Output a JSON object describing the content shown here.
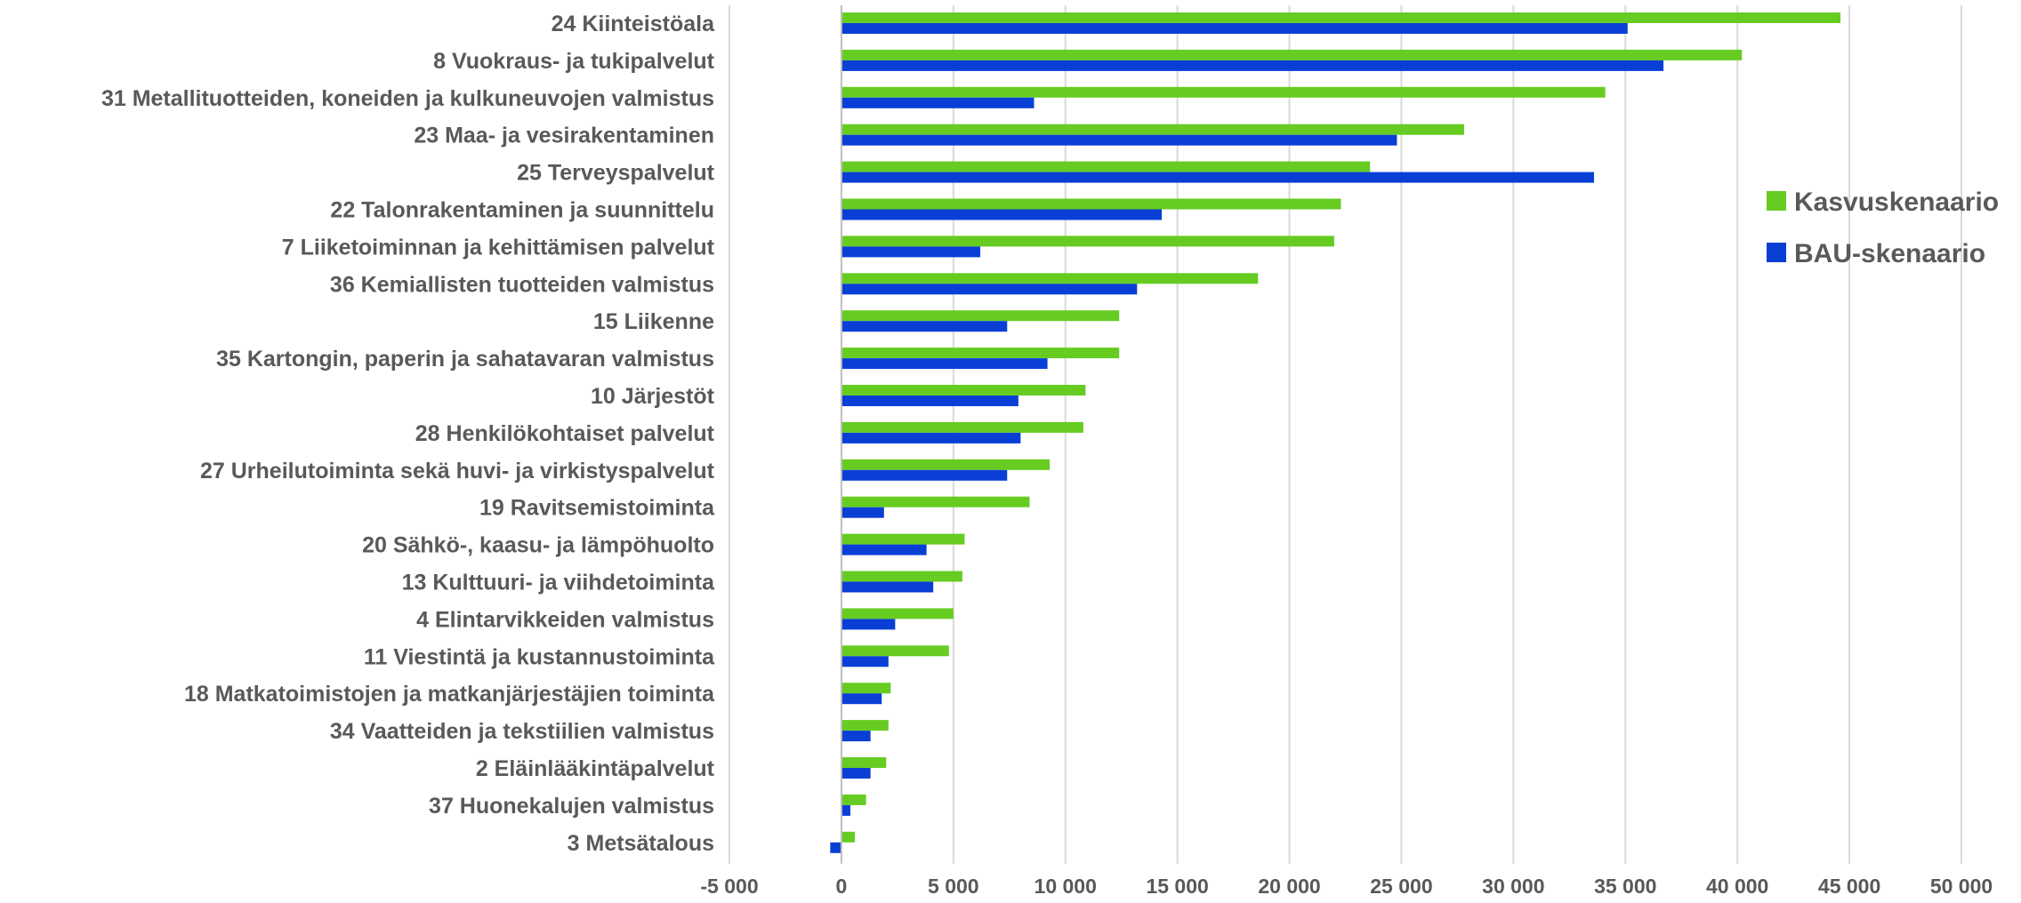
{
  "chart_data": {
    "type": "bar",
    "orientation": "horizontal",
    "categories": [
      "24 Kiinteistöala",
      "8 Vuokraus- ja tukipalvelut",
      "31 Metallituotteiden, koneiden ja kulkuneuvojen valmistus",
      "23 Maa- ja vesirakentaminen",
      "25 Terveyspalvelut",
      "22 Talonrakentaminen ja suunnittelu",
      "7 Liiketoiminnan ja kehittämisen palvelut",
      "36 Kemiallisten tuotteiden valmistus",
      "15 Liikenne",
      "35 Kartongin, paperin ja sahatavaran valmistus",
      "10 Järjestöt",
      "28 Henkilökohtaiset palvelut",
      "27 Urheilutoiminta sekä huvi- ja virkistyspalvelut",
      "19 Ravitsemistoiminta",
      "20 Sähkö-, kaasu- ja lämpöhuolto",
      "13 Kulttuuri- ja viihdetoiminta",
      "4 Elintarvikkeiden valmistus",
      "11 Viestintä ja kustannustoiminta",
      "18 Matkatoimistojen ja matkanjärjestäjien toiminta",
      "34 Vaatteiden ja tekstiilien valmistus",
      "2 Eläinlääkintäpalvelut",
      "37 Huonekalujen valmistus",
      "3 Metsätalous"
    ],
    "series": [
      {
        "name": "Kasvuskenaario",
        "color": "#66cc22",
        "values": [
          44600,
          40200,
          34100,
          27800,
          23600,
          22300,
          22000,
          18600,
          12400,
          12400,
          10900,
          10800,
          9300,
          8400,
          5500,
          5400,
          5000,
          4800,
          2200,
          2100,
          2000,
          1100,
          600
        ]
      },
      {
        "name": "BAU-skenaario",
        "color": "#0a3fd6",
        "values": [
          35100,
          36700,
          8600,
          24800,
          33600,
          14300,
          6200,
          13200,
          7400,
          9200,
          7900,
          8000,
          7400,
          1900,
          3800,
          4100,
          2400,
          2100,
          1800,
          1300,
          1300,
          400,
          -500
        ]
      }
    ],
    "xlim": [
      -5000,
      50000
    ],
    "xticks": [
      -5000,
      0,
      5000,
      10000,
      15000,
      20000,
      25000,
      30000,
      35000,
      40000,
      45000,
      50000
    ],
    "xtick_labels": [
      "-5 000",
      "0",
      "5 000",
      "10 000",
      "15 000",
      "20 000",
      "25 000",
      "30 000",
      "35 000",
      "40 000",
      "45 000",
      "50 000"
    ],
    "grid": "vertical",
    "legend_position": "right",
    "title": "",
    "xlabel": "",
    "ylabel": ""
  }
}
